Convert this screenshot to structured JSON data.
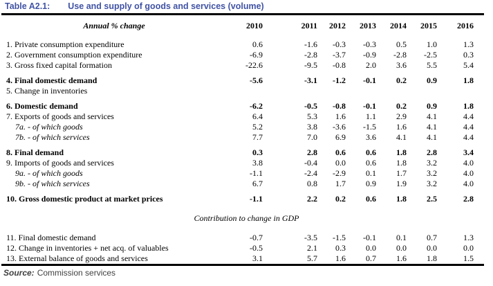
{
  "title": {
    "label": "Table A2.1:",
    "text": "Use and supply of goods and services (volume)"
  },
  "colors": {
    "title": "#4153a4",
    "rule": "#000000",
    "text": "#000000",
    "source": "#3f3f3f"
  },
  "table": {
    "header": {
      "label": "Annual % change",
      "years": [
        "2010",
        "2011",
        "2012",
        "2013",
        "2014",
        "2015",
        "2016"
      ]
    },
    "sections": [
      {
        "heading": "",
        "rows": [
          {
            "label": "1. Private consumption expenditure",
            "style": "normal",
            "gap_before": false,
            "values": [
              "0.6",
              "-1.6",
              "-0.3",
              "-0.3",
              "0.5",
              "1.0",
              "1.3"
            ]
          },
          {
            "label": "2. Government consumption expenditure",
            "style": "normal",
            "gap_before": false,
            "values": [
              "-6.9",
              "-2.8",
              "-3.7",
              "-0.9",
              "-2.8",
              "-2.5",
              "0.3"
            ]
          },
          {
            "label": "3. Gross fixed capital formation",
            "style": "normal",
            "gap_before": false,
            "values": [
              "-22.6",
              "-9.5",
              "-0.8",
              "2.0",
              "3.6",
              "5.5",
              "5.4"
            ]
          },
          {
            "label": "4. Final domestic demand",
            "style": "bold",
            "gap_before": true,
            "values": [
              "-5.6",
              "-3.1",
              "-1.2",
              "-0.1",
              "0.2",
              "0.9",
              "1.8"
            ]
          },
          {
            "label": "5. Change in inventories",
            "style": "normal",
            "gap_before": false,
            "values": [
              "",
              "",
              "",
              "",
              "",
              "",
              ""
            ]
          },
          {
            "label": "6. Domestic demand",
            "style": "bold",
            "gap_before": true,
            "values": [
              "-6.2",
              "-0.5",
              "-0.8",
              "-0.1",
              "0.2",
              "0.9",
              "1.8"
            ]
          },
          {
            "label": "7. Exports of goods and services",
            "style": "normal",
            "gap_before": false,
            "values": [
              "6.4",
              "5.3",
              "1.6",
              "1.1",
              "2.9",
              "4.1",
              "4.4"
            ]
          },
          {
            "label": "7a. - of which goods",
            "style": "sub",
            "gap_before": false,
            "values": [
              "5.2",
              "3.8",
              "-3.6",
              "-1.5",
              "1.6",
              "4.1",
              "4.4"
            ]
          },
          {
            "label": "7b. - of which services",
            "style": "sub",
            "gap_before": false,
            "values": [
              "7.7",
              "7.0",
              "6.9",
              "3.6",
              "4.1",
              "4.1",
              "4.4"
            ]
          },
          {
            "label": "8. Final demand",
            "style": "bold",
            "gap_before": true,
            "values": [
              "0.3",
              "2.8",
              "0.6",
              "0.6",
              "1.8",
              "2.8",
              "3.4"
            ]
          },
          {
            "label": "9. Imports of goods and services",
            "style": "normal",
            "gap_before": false,
            "values": [
              "3.8",
              "-0.4",
              "0.0",
              "0.6",
              "1.8",
              "3.2",
              "4.0"
            ]
          },
          {
            "label": "9a. - of which goods",
            "style": "sub",
            "gap_before": false,
            "values": [
              "-1.1",
              "-2.4",
              "-2.9",
              "0.1",
              "1.7",
              "3.2",
              "4.0"
            ]
          },
          {
            "label": "9b. - of which services",
            "style": "sub",
            "gap_before": false,
            "values": [
              "6.7",
              "0.8",
              "1.7",
              "0.9",
              "1.9",
              "3.2",
              "4.0"
            ]
          },
          {
            "label": "10. Gross domestic product at market prices",
            "style": "bold",
            "gap_before": true,
            "values": [
              "-1.1",
              "2.2",
              "0.2",
              "0.6",
              "1.8",
              "2.5",
              "2.8"
            ]
          }
        ]
      },
      {
        "heading": "Contribution to change in GDP",
        "rows": [
          {
            "label": "11. Final domestic demand",
            "style": "normal",
            "gap_before": false,
            "values": [
              "-0.7",
              "-3.5",
              "-1.5",
              "-0.1",
              "0.1",
              "0.7",
              "1.3"
            ]
          },
          {
            "label": "12. Change in inventories + net acq. of valuables",
            "style": "normal",
            "gap_before": false,
            "values": [
              "-0.5",
              "2.1",
              "0.3",
              "0.0",
              "0.0",
              "0.0",
              "0.0"
            ]
          },
          {
            "label": "13. External balance of goods and services",
            "style": "normal",
            "gap_before": false,
            "values": [
              "3.1",
              "5.7",
              "1.6",
              "0.7",
              "1.6",
              "1.8",
              "1.5"
            ]
          }
        ]
      }
    ]
  },
  "source": {
    "label": "Source:",
    "text": "Commission services"
  }
}
